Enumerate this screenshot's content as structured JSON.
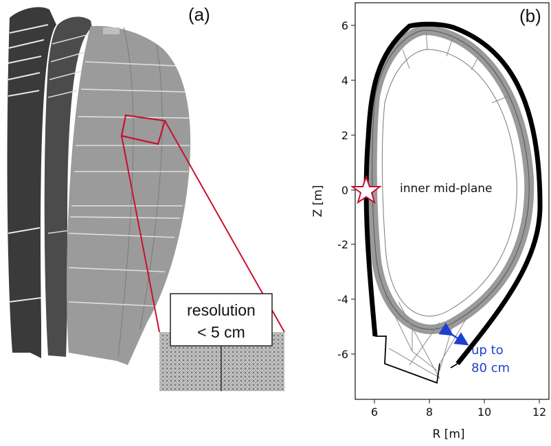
{
  "panel_a": {
    "label": "(a)",
    "inset_text_line1": "resolution",
    "inset_text_line2": "< 5 cm"
  },
  "panel_b": {
    "label": "(b)",
    "xlabel": "R [m]",
    "ylabel": "Z [m]",
    "x_ticks": [
      "6",
      "8",
      "10",
      "12"
    ],
    "y_ticks": [
      "6",
      "4",
      "2",
      "0",
      "-2",
      "-4",
      "-6"
    ],
    "annotation_midplane": "inner mid-plane",
    "annotation_gap_line1": "up to",
    "annotation_gap_line2": "80 cm"
  },
  "colors": {
    "highlight": "#c8102e",
    "annotation_blue": "#1f3fcf",
    "wall": "#000000",
    "mesh": "#8a8a8a"
  }
}
